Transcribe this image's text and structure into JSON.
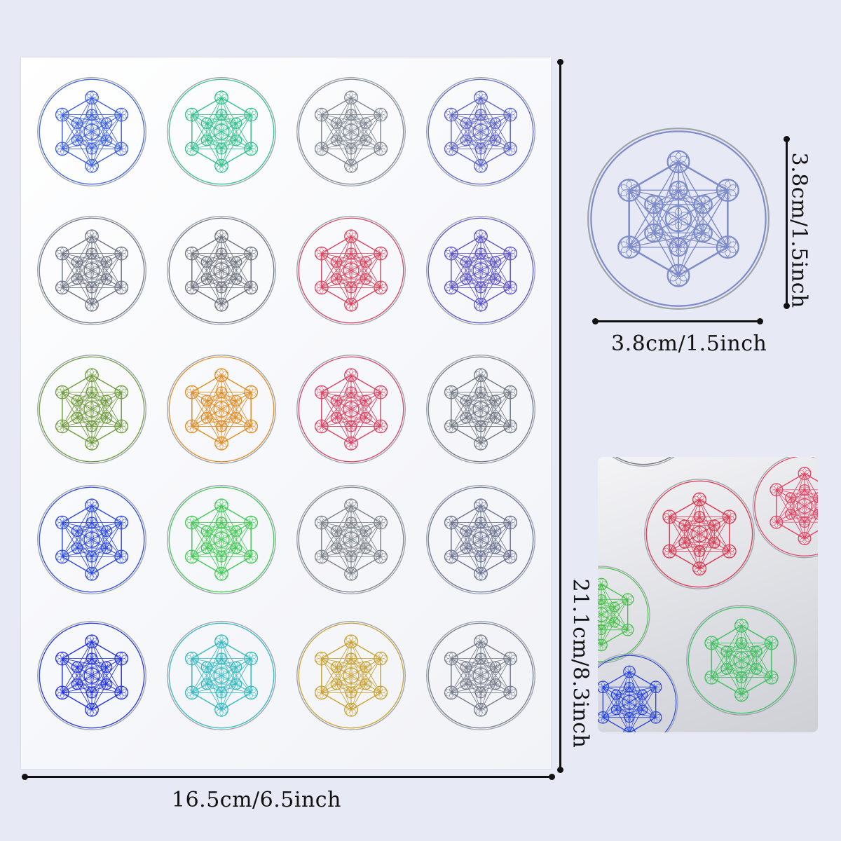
{
  "dimensions": {
    "sheet_width": "16.5cm/6.5inch",
    "sheet_height": "21.1cm/8.3inch",
    "sticker_width": "3.8cm/1.5inch",
    "sticker_height": "3.8cm/1.5inch"
  },
  "sheet": {
    "rows": 5,
    "columns": 4,
    "tints": [
      [
        "#3a5ee0",
        "#2fbf8a",
        "#7d8590",
        "#5a62c8"
      ],
      [
        "#6a7080",
        "#6a6f7a",
        "#d8405a",
        "#5a50c8"
      ],
      [
        "#6d9a3a",
        "#e08a20",
        "#d84060",
        "#707680"
      ],
      [
        "#2a48e0",
        "#3ec850",
        "#7a8088",
        "#6a7090"
      ],
      [
        "#2030e0",
        "#30b8c0",
        "#c8a030",
        "#747a88"
      ]
    ]
  },
  "single_sticker": {
    "tint": "#7a88c8"
  },
  "closeup": {
    "tints": [
      "#707078",
      "#d83850",
      "#e04060",
      "#40c040",
      "#40c060",
      "#2040e0"
    ]
  },
  "icons": {
    "sticker_motif": "metatrons-cube-icon"
  }
}
